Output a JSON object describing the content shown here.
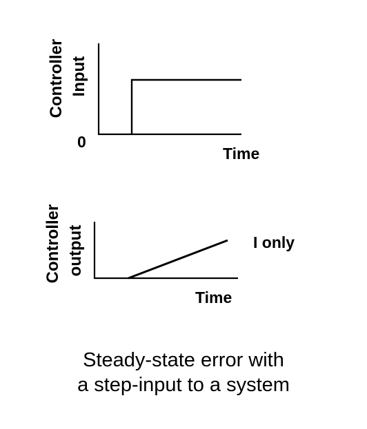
{
  "top_plot": {
    "ylabel_line1": "Controller",
    "ylabel_line2": "Input",
    "origin_label": "0",
    "xlabel": "Time"
  },
  "bottom_plot": {
    "ylabel_line1": "Controller",
    "ylabel_line2": "output",
    "xlabel": "Time",
    "annotation": "I only"
  },
  "caption": {
    "line1": "Steady-state error with",
    "line2": "a step-input to a system"
  }
}
